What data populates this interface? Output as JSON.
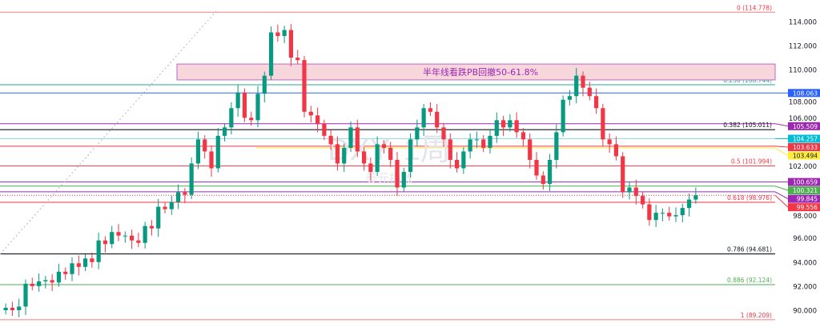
{
  "chart_data": {
    "type": "candlestick",
    "symbol_watermark": "DXY, 1周",
    "name_watermark": "美元指数",
    "ylim": [
      89.0,
      115.2
    ],
    "y_ticks": [
      "114.000",
      "112.000",
      "110.000",
      "108.000",
      "106.000",
      "102.000",
      "98.000",
      "96.000",
      "94.000",
      "92.000",
      "90.000"
    ],
    "y_tick_values": [
      114,
      112,
      110,
      108,
      106,
      102,
      98,
      96,
      94,
      92,
      90
    ],
    "colors": {
      "up": "#089981",
      "down": "#f23645"
    },
    "closes": [
      90.2,
      90.0,
      90.3,
      92.2,
      92.0,
      92.4,
      92.5,
      92.3,
      93.2,
      93.0,
      93.9,
      93.6,
      94.3,
      94.0,
      95.8,
      95.5,
      96.5,
      96.2,
      96.2,
      95.8,
      95.6,
      97.0,
      96.8,
      98.6,
      98.4,
      99.0,
      99.8,
      99.6,
      102.2,
      104.2,
      103.2,
      101.8,
      104.5,
      105.2,
      106.8,
      108.1,
      106.0,
      105.8,
      108.0,
      109.5,
      113.1,
      112.8,
      113.3,
      111.0,
      110.8,
      106.5,
      106.2,
      105.5,
      104.5,
      103.8,
      102.2,
      103.5,
      105.2,
      103.2,
      102.2,
      101.5,
      103.8,
      103.5,
      102.5,
      100.2,
      101.5,
      104.2,
      105.2,
      106.8,
      106.5,
      105.2,
      104.2,
      102.5,
      101.8,
      103.2,
      104.2,
      104.2,
      103.5,
      104.5,
      105.8,
      105.2,
      105.8,
      104.8,
      104.2,
      102.5,
      101.2,
      100.5,
      102.5,
      104.8,
      107.5,
      107.8,
      109.5,
      108.5,
      107.8,
      106.8,
      104.2,
      103.8,
      102.8,
      99.8,
      100.2,
      99.5,
      98.8,
      97.5,
      98.1,
      98.1,
      97.8,
      97.9,
      98.5,
      99.2,
      99.556
    ],
    "levels": [
      {
        "price": 114.778,
        "label": "0 (114.778)",
        "color": "#f77c80",
        "kind": "fib"
      },
      {
        "price": 108.744,
        "label": "0.236 (108.744)",
        "color": "#22ab94",
        "kind": "fib"
      },
      {
        "price": 108.063,
        "label": "108.063",
        "color": "#2962ff",
        "kind": "tag"
      },
      {
        "price": 105.509,
        "label": "105.509",
        "color": "#9c27b0",
        "kind": "tag"
      },
      {
        "price": 105.011,
        "label": "0.382 (105.011)",
        "color": "#131722",
        "kind": "fib"
      },
      {
        "price": 104.257,
        "label": "104.257",
        "color": "#00bcd4",
        "kind": "tag"
      },
      {
        "price": 103.633,
        "label": "103.633",
        "color": "#f23645",
        "kind": "tag"
      },
      {
        "price": 103.494,
        "label": "103.494",
        "color": "#ffeb3b",
        "kind": "tag"
      },
      {
        "price": 101.994,
        "label": "0.5 (101.994)",
        "color": "#f23645",
        "kind": "fib"
      },
      {
        "price": 100.659,
        "label": "100.659",
        "color": "#9c27b0",
        "kind": "tag"
      },
      {
        "price": 100.321,
        "label": "100.321",
        "color": "#4caf50",
        "kind": "tag"
      },
      {
        "price": 99.845,
        "label": "99.845",
        "color": "#9c27b0",
        "kind": "tag"
      },
      {
        "price": 99.556,
        "label": "99.556",
        "color": "#f23645",
        "kind": "current"
      },
      {
        "price": 98.976,
        "label": "0.618 (98.976)",
        "color": "#f23645",
        "kind": "fib"
      },
      {
        "price": 94.681,
        "label": "0.786 (94.681)",
        "color": "#131722",
        "kind": "fib"
      },
      {
        "price": 92.124,
        "label": "0.886 (92.124)",
        "color": "#4caf50",
        "kind": "fib"
      },
      {
        "price": 89.209,
        "label": "1 (89.209)",
        "color": "#f77c80",
        "kind": "fib"
      }
    ],
    "zone": {
      "top": 110.47,
      "bottom": 109.15,
      "label": "半年线看跌PB回撤50-61.8%",
      "fill": "#f8d7dc",
      "border": "#ba68c8",
      "text_color": "#9c27b0"
    }
  }
}
